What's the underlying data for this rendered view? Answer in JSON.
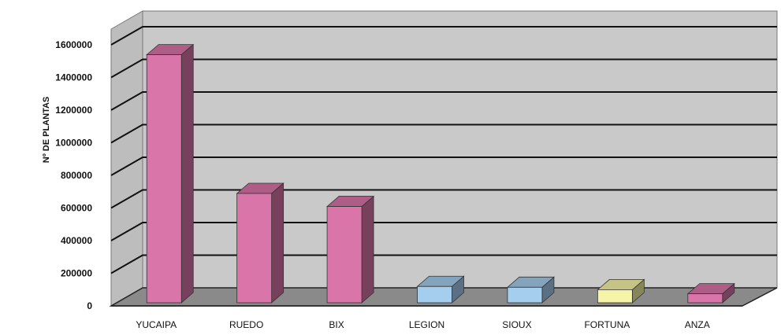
{
  "chart_data": {
    "type": "bar",
    "title": "",
    "xlabel": "",
    "ylabel": "Nº DE PLANTAS",
    "ylim": [
      0,
      1600000
    ],
    "yticks": [
      0,
      200000,
      400000,
      600000,
      800000,
      1000000,
      1200000,
      1400000,
      1600000
    ],
    "ytick_labels": [
      "0",
      "200000",
      "400000",
      "600000",
      "800000",
      "1000000",
      "1200000",
      "1400000",
      "1600000"
    ],
    "categories": [
      "YUCAIPA",
      "RUEDO",
      "BIX",
      "LEGION",
      "SIOUX",
      "FORTUNA",
      "ANZA"
    ],
    "values": [
      1520000,
      670000,
      590000,
      100000,
      95000,
      80000,
      55000
    ],
    "bar_colors": [
      "#d975a8",
      "#d975a8",
      "#d975a8",
      "#a5cdee",
      "#a5cdee",
      "#f6f4a6",
      "#d975a8"
    ],
    "grid": true,
    "legend": "none",
    "style": "3d"
  },
  "colors": {
    "wall": "#c9c9c9",
    "floor": "#8a8a8a",
    "gridline": "#111111"
  }
}
